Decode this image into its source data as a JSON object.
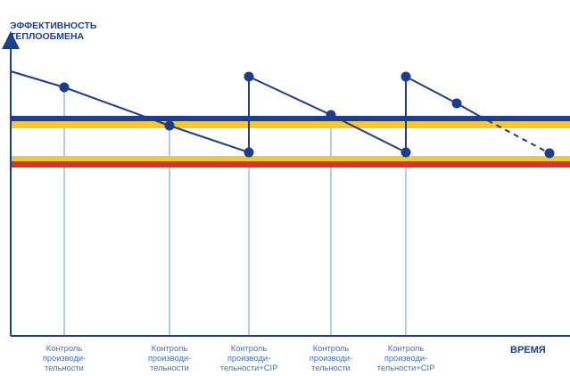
{
  "axes": {
    "y_title": [
      "ЭФФЕКТИВНОСТЬ",
      "ТЕПЛООБМЕНА"
    ],
    "x_title": "ВРЕМЯ"
  },
  "check_labels": [
    [
      "Контроль",
      "производи-",
      "тельности"
    ],
    [
      "Контроль",
      "производи-",
      "тельности"
    ],
    [
      "Контроль",
      "производи-",
      "тельности+CIP"
    ],
    [
      "Контроль",
      "производи-",
      "тельности"
    ],
    [
      "Контроль",
      "производи-",
      "тельности+CIP"
    ]
  ],
  "colors": {
    "navy": "#1d3f8f",
    "marker": "#1c3d8c",
    "guide": "#6f9ad8",
    "yellow": "#f7c82d",
    "red": "#d8342b",
    "label": "#3f72c6"
  }
}
